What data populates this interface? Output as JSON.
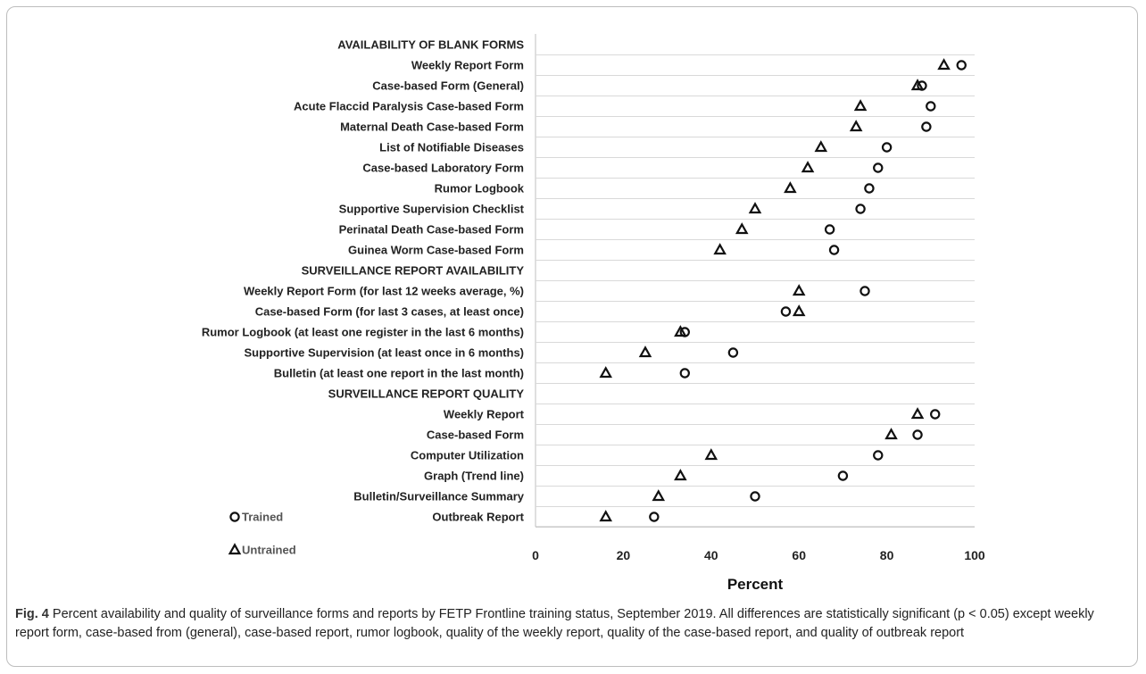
{
  "chart_data": {
    "type": "scatter",
    "categories": [
      "AVAILABILITY OF BLANK FORMS",
      "Weekly Report Form",
      "Case-based Form (General)",
      "Acute Flaccid Paralysis Case-based Form",
      "Maternal Death Case-based Form",
      "List of Notifiable Diseases",
      "Case-based Laboratory Form",
      "Rumor Logbook",
      "Supportive Supervision Checklist",
      "Perinatal Death Case-based Form",
      "Guinea Worm Case-based Form",
      "SURVEILLANCE REPORT AVAILABILITY",
      "Weekly Report Form (for last 12 weeks average, %)",
      "Case-based Form (for last 3 cases, at least once)",
      "Rumor Logbook (at least one register in the last 6 months)",
      "Supportive Supervision (at least once in 6 months)",
      "Bulletin (at least one report in the last month)",
      "SURVEILLANCE REPORT QUALITY",
      "Weekly Report",
      "Case-based Form",
      "Computer Utilization",
      "Graph (Trend line)",
      "Bulletin/Surveillance Summary",
      "Outbreak Report"
    ],
    "series": [
      {
        "name": "Trained",
        "marker": "circle",
        "values": [
          null,
          97,
          88,
          90,
          89,
          80,
          78,
          76,
          74,
          67,
          68,
          null,
          75,
          57,
          34,
          45,
          34,
          null,
          91,
          87,
          78,
          70,
          50,
          27
        ]
      },
      {
        "name": "Untrained",
        "marker": "triangle",
        "values": [
          null,
          93,
          87,
          74,
          73,
          65,
          62,
          58,
          50,
          47,
          42,
          null,
          60,
          60,
          33,
          25,
          16,
          null,
          87,
          81,
          40,
          33,
          28,
          16
        ]
      }
    ],
    "xlabel": "Percent",
    "xlim": [
      0,
      100
    ],
    "xticks": [
      0,
      20,
      40,
      60,
      80,
      100
    ],
    "grid": "horizontal",
    "legend": "bottom-left",
    "marker_color": "#111111"
  },
  "caption": {
    "label": "Fig. 4",
    "text": "Percent availability and quality of surveillance forms and reports by FETP Frontline training status, September 2019. All differences are statistically significant (p < 0.05) except weekly report form, case-based from (general), case-based report, rumor logbook, quality of the weekly report, quality of the case-based report, and quality of outbreak report"
  }
}
